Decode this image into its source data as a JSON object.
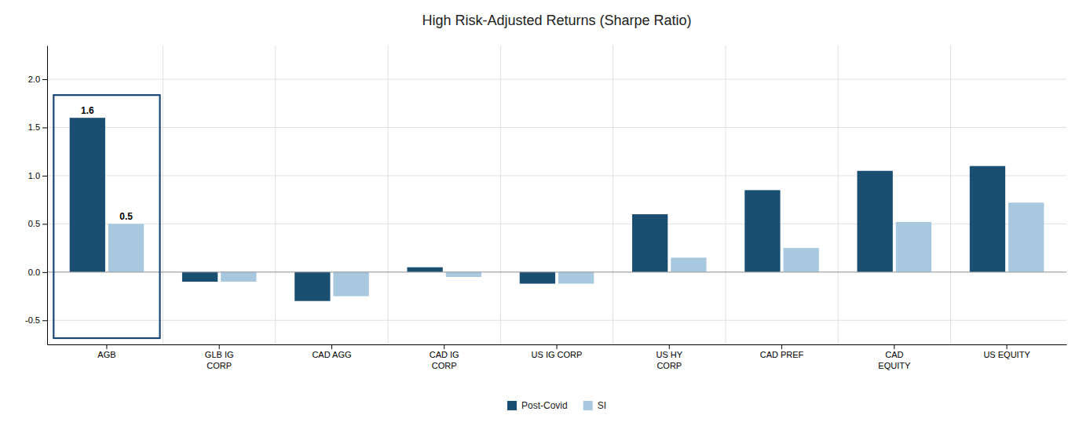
{
  "chart_data": {
    "type": "bar",
    "title": "High Risk-Adjusted Returns (Sharpe Ratio)",
    "categories": [
      "AGB",
      "GLB IG\nCORP",
      "CAD AGG",
      "CAD IG\nCORP",
      "US IG CORP",
      "US HY\nCORP",
      "CAD PREF",
      "CAD\nEQUITY",
      "US EQUITY"
    ],
    "series": [
      {
        "name": "Post-Covid",
        "color": "#1a4f72",
        "values": [
          1.6,
          -0.1,
          -0.3,
          0.05,
          -0.12,
          0.6,
          0.85,
          1.05,
          1.1
        ]
      },
      {
        "name": "SI",
        "color": "#a8c8e0",
        "values": [
          0.5,
          -0.1,
          -0.25,
          -0.05,
          -0.12,
          0.15,
          0.25,
          0.52,
          0.72
        ]
      }
    ],
    "annotations": [
      {
        "text": "1.6",
        "category": "AGB",
        "series": "Post-Covid"
      },
      {
        "text": "0.5",
        "category": "AGB",
        "series": "SI"
      },
      {
        "shape": "rect",
        "category": "AGB",
        "color": "#1a4872"
      }
    ],
    "ylim": [
      -0.75,
      2.35
    ],
    "yticks": [
      -0.5,
      {
        "value": 0.0,
        "label": "0.0"
      },
      0.5,
      {
        "value": 1.0,
        "label": "1.0"
      },
      1.5,
      {
        "value": 2.0,
        "label": "2.0"
      }
    ],
    "grid": true,
    "legend": "bottom"
  }
}
